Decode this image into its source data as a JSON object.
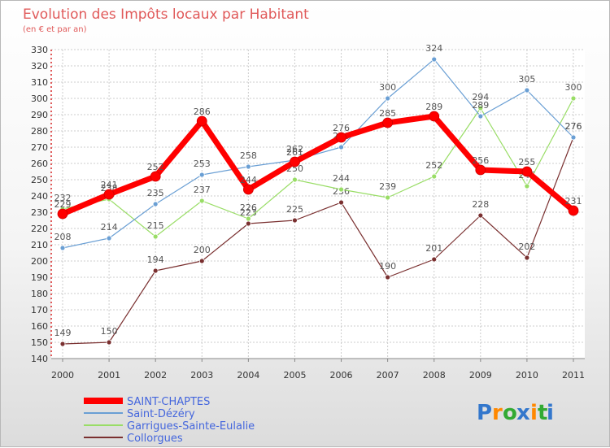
{
  "chart_data": {
    "type": "line",
    "title": "Evolution des Impôts locaux par Habitant",
    "subtitle": "(en € et par an)",
    "xlabel": "",
    "ylabel": "",
    "x": [
      "2000",
      "2001",
      "2002",
      "2003",
      "2004",
      "2005",
      "2006",
      "2007",
      "2008",
      "2009",
      "2010",
      "2011"
    ],
    "ylim": [
      140,
      330
    ],
    "yticks": [
      140,
      150,
      160,
      170,
      180,
      190,
      200,
      210,
      220,
      230,
      240,
      250,
      260,
      270,
      280,
      290,
      300,
      310,
      320,
      330
    ],
    "grid": true,
    "legend_position": "bottom-left",
    "series": [
      {
        "name": "SAINT-CHAPTES",
        "color": "#ff0000",
        "width": 7,
        "values": [
          229,
          241,
          252,
          286,
          244,
          261,
          276,
          285,
          289,
          256,
          255,
          231
        ],
        "labels": [
          "229",
          "241",
          "252",
          "286",
          "244",
          "261",
          "276",
          "285",
          "289",
          "256",
          "255",
          "231"
        ]
      },
      {
        "name": "Saint-Dézéry",
        "color": "#6a9fd4",
        "width": 1.2,
        "values": [
          208,
          214,
          235,
          253,
          258,
          262,
          270,
          300,
          324,
          289,
          305,
          276
        ],
        "labels": [
          "208",
          "214",
          "235",
          "253",
          "258",
          "262",
          "270",
          "300",
          "324",
          "289",
          "305",
          "276"
        ]
      },
      {
        "name": "Garrigues-Sainte-Eulalie",
        "color": "#99dd66",
        "width": 1.2,
        "values": [
          232,
          238,
          215,
          237,
          226,
          250,
          244,
          239,
          252,
          294,
          246,
          300
        ],
        "labels": [
          "232",
          "238",
          "215",
          "237",
          "226",
          "250",
          "244",
          "239",
          "252",
          "294",
          "246",
          "300"
        ]
      },
      {
        "name": "Collorgues",
        "color": "#7a3030",
        "width": 1.2,
        "values": [
          149,
          150,
          194,
          200,
          223,
          225,
          236,
          190,
          201,
          228,
          202,
          276
        ],
        "labels": [
          "149",
          "150",
          "194",
          "200",
          "223",
          "225",
          "236",
          "190",
          "201",
          "228",
          "202",
          "276"
        ]
      }
    ]
  },
  "branding": {
    "logo_text": "Proxiti",
    "logo_letters": [
      "P",
      "r",
      "o",
      "x",
      "i",
      "t",
      "i"
    ],
    "logo_colors": [
      "#3377cc",
      "#ff8800",
      "#33aa33",
      "#3377cc",
      "#ff8800",
      "#33aa33",
      "#3377cc"
    ]
  }
}
